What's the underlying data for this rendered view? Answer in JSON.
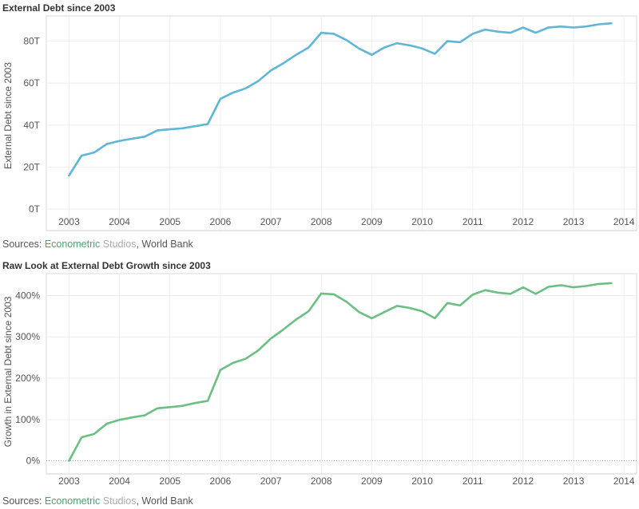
{
  "charts": [
    {
      "title": "External Debt since 2003",
      "source": {
        "prefix": "Sources: ",
        "brand1": "Econometric",
        "brand2": " Studios",
        "suffix": ", World Bank"
      }
    },
    {
      "title": "Raw Look at External Debt Growth since 2003",
      "source": {
        "prefix": "Sources: ",
        "brand1": "Econometric",
        "brand2": " Studios",
        "suffix": ", World Bank"
      }
    }
  ],
  "chart_data": [
    {
      "type": "line",
      "title": "External Debt since 2003",
      "xlabel": "",
      "ylabel": "External Debt since 2003",
      "color": "#5fb6d6",
      "x_ticks": [
        "2003",
        "2004",
        "2005",
        "2006",
        "2007",
        "2008",
        "2009",
        "2010",
        "2011",
        "2012",
        "2013",
        "2014"
      ],
      "y_ticks": [
        "0T",
        "20T",
        "40T",
        "60T",
        "80T"
      ],
      "y_tick_values": [
        0,
        20,
        40,
        60,
        80
      ],
      "xlim": [
        2002.55,
        2014.25
      ],
      "ylim": [
        -3,
        92
      ],
      "grid": true,
      "series": [
        {
          "x": [
            2003.0,
            2003.25,
            2003.5,
            2003.75,
            2004.0,
            2004.25,
            2004.5,
            2004.75,
            2005.0,
            2005.25,
            2005.5,
            2005.75,
            2006.0,
            2006.25,
            2006.5,
            2006.75,
            2007.0,
            2007.25,
            2007.5,
            2007.75,
            2008.0,
            2008.25,
            2008.5,
            2008.75,
            2009.0,
            2009.25,
            2009.5,
            2009.75,
            2010.0,
            2010.25,
            2010.5,
            2010.75,
            2011.0,
            2011.25,
            2011.5,
            2011.75,
            2012.0,
            2012.25,
            2012.5,
            2012.75,
            2013.0,
            2013.25,
            2013.5,
            2013.75
          ],
          "y": [
            16,
            25.5,
            27,
            31,
            32.5,
            33.5,
            34.5,
            37.5,
            38,
            38.5,
            39.5,
            40.5,
            52.5,
            55.5,
            57.5,
            61,
            66,
            69.5,
            73.5,
            77,
            84,
            83.5,
            80.5,
            76.5,
            73.5,
            77,
            79,
            78,
            76.5,
            74,
            80,
            79.5,
            83.5,
            85.5,
            84.5,
            84,
            86.5,
            84,
            86.5,
            87,
            86.5,
            87,
            88,
            88.5
          ]
        }
      ]
    },
    {
      "type": "line",
      "title": "Raw Look at External Debt Growth since 2003",
      "xlabel": "",
      "ylabel": "Growth in External Debt since 2003",
      "color": "#6cbf83",
      "x_ticks": [
        "2003",
        "2004",
        "2005",
        "2006",
        "2007",
        "2008",
        "2009",
        "2010",
        "2011",
        "2012",
        "2013",
        "2014"
      ],
      "y_ticks": [
        "0%",
        "100%",
        "200%",
        "300%",
        "400%"
      ],
      "y_tick_values": [
        0,
        100,
        200,
        300,
        400
      ],
      "xlim": [
        2002.55,
        2014.25
      ],
      "ylim": [
        -22,
        453
      ],
      "grid": true,
      "zero_line": true,
      "series": [
        {
          "x": [
            2003.0,
            2003.25,
            2003.5,
            2003.75,
            2004.0,
            2004.25,
            2004.5,
            2004.75,
            2005.0,
            2005.25,
            2005.5,
            2005.75,
            2006.0,
            2006.25,
            2006.5,
            2006.75,
            2007.0,
            2007.25,
            2007.5,
            2007.75,
            2008.0,
            2008.25,
            2008.5,
            2008.75,
            2009.0,
            2009.25,
            2009.5,
            2009.75,
            2010.0,
            2010.25,
            2010.5,
            2010.75,
            2011.0,
            2011.25,
            2011.5,
            2011.75,
            2012.0,
            2012.25,
            2012.5,
            2012.75,
            2013.0,
            2013.25,
            2013.5,
            2013.75
          ],
          "y": [
            0,
            57,
            65,
            90,
            99,
            105,
            110,
            127,
            130,
            133,
            140,
            145,
            220,
            237,
            247,
            267,
            296,
            318,
            342,
            362,
            405,
            403,
            385,
            360,
            345,
            360,
            375,
            370,
            362,
            345,
            382,
            376,
            402,
            413,
            407,
            404,
            420,
            404,
            421,
            425,
            420,
            423,
            428,
            430
          ]
        }
      ]
    }
  ]
}
